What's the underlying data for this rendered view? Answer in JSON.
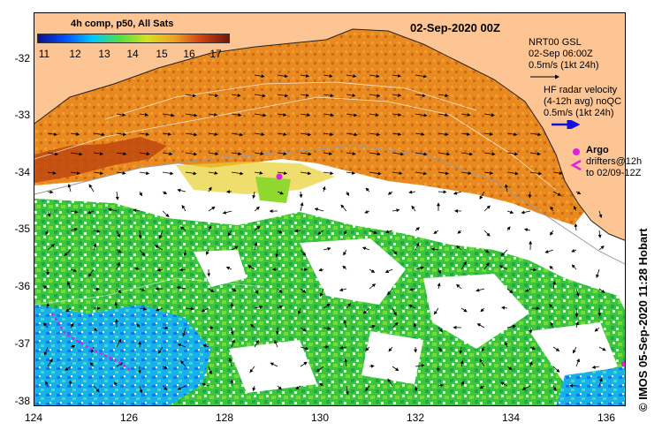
{
  "title": "02-Sep-2020 00Z",
  "colorbar": {
    "title": "4h comp, p50, All Sats",
    "labels": [
      "11",
      "12",
      "13",
      "14",
      "15",
      "16",
      "17"
    ],
    "colors": [
      "#10108a",
      "#0050ff",
      "#00c8ff",
      "#50e040",
      "#d8e020",
      "#f0a020",
      "#d04010",
      "#701808"
    ]
  },
  "legend": {
    "gsl_title": "NRT00 GSL",
    "gsl_time": "02-Sep 06:00Z",
    "gsl_scale": "0.5m/s (1kt 24h)",
    "radar_title": "HF radar velocity",
    "radar_sub": "(4-12h avg) noQC",
    "radar_scale": "0.5m/s (1kt 24h)",
    "argo_label": "Argo",
    "drifters_label": "drifters@12h",
    "drifters_to": "to 02/09-12Z",
    "radar_arrow_color": "#1010e0",
    "argo_color": "#e020e0"
  },
  "axes": {
    "x_ticks": [
      "124",
      "126",
      "128",
      "130",
      "132",
      "134",
      "136"
    ],
    "y_ticks": [
      "-32",
      "-33",
      "-34",
      "-35",
      "-36",
      "-37",
      "-38"
    ]
  },
  "credit": "© IMOS 05-Sep-2020 11:28 Hobart",
  "colors": {
    "land": "#fdc593",
    "cloud": "#ffffff"
  }
}
